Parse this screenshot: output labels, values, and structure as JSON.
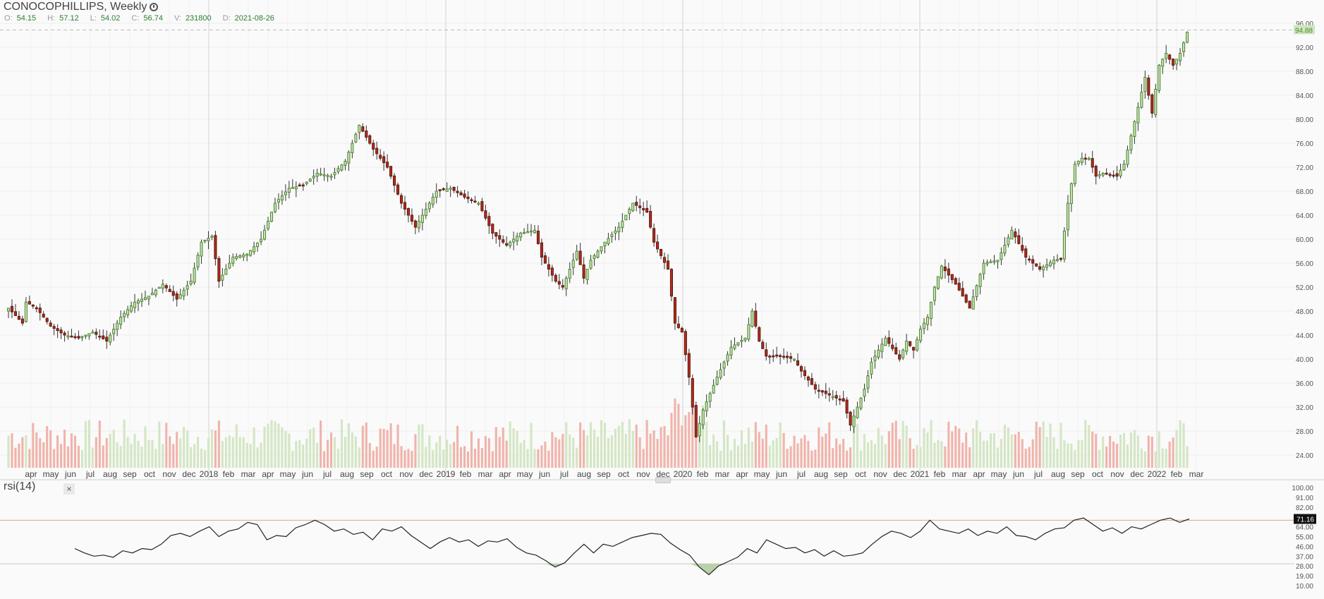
{
  "header": {
    "symbol": "CONOCOPHILLIPS",
    "interval": "Weekly",
    "symbol_line": "CONOCOPHILLIPS, Weekly"
  },
  "ohlc": {
    "o_key": "O:",
    "o": "54.15",
    "h_key": "H:",
    "h": "57.12",
    "l_key": "L:",
    "l": "54.02",
    "c_key": "C:",
    "c": "56.74",
    "v_key": "V:",
    "v": "231800",
    "d_key": "D:",
    "d": "2021-08-26"
  },
  "rsi_panel": {
    "title": "rsi(14)",
    "close_glyph": "×"
  },
  "colors": {
    "up": "#4d8a2e",
    "up_fill": "#c9dfb7",
    "down": "#b72a1a",
    "vol_up": "#d3e6c4",
    "vol_down": "#f0b3aa",
    "rsi_line": "#222222",
    "overbought": "#e8a080",
    "oversold_fill": "#b8d1a9",
    "last_price_bg": "#cfe6bf"
  },
  "chart_data": [
    {
      "type": "candlestick",
      "title": "CONOCOPHILLIPS, Weekly",
      "x_tick_labels": [
        "apr",
        "may",
        "jun",
        "jul",
        "aug",
        "sep",
        "oct",
        "nov",
        "dec",
        "2018",
        "feb",
        "mar",
        "apr",
        "may",
        "jun",
        "jul",
        "aug",
        "sep",
        "oct",
        "nov",
        "dec",
        "2019",
        "feb",
        "mar",
        "apr",
        "may",
        "jun",
        "jul",
        "aug",
        "sep",
        "oct",
        "nov",
        "dec",
        "2020",
        "feb",
        "mar",
        "apr",
        "may",
        "jun",
        "jul",
        "aug",
        "sep",
        "oct",
        "nov",
        "dec",
        "2021",
        "feb",
        "mar",
        "apr",
        "may",
        "jun",
        "jul",
        "aug",
        "sep",
        "oct",
        "nov",
        "dec",
        "2022",
        "feb",
        "mar"
      ],
      "y_tick_labels": [
        "96.00",
        "92.00",
        "88.00",
        "84.00",
        "80.00",
        "76.00",
        "72.00",
        "68.00",
        "64.00",
        "60.00",
        "56.00",
        "52.00",
        "48.00",
        "44.00",
        "40.00",
        "36.00",
        "32.00",
        "28.00",
        "24.00"
      ],
      "ylim": [
        21.5,
        97.5
      ],
      "last_price": "94.88",
      "close_path": [
        [
          0,
          48.5
        ],
        [
          4,
          46
        ],
        [
          5,
          49.5
        ],
        [
          8,
          48.5
        ],
        [
          12,
          45.5
        ],
        [
          16,
          44
        ],
        [
          20,
          43.5
        ],
        [
          24,
          44.5
        ],
        [
          28,
          43
        ],
        [
          32,
          47
        ],
        [
          36,
          49.5
        ],
        [
          40,
          50.5
        ],
        [
          44,
          52.5
        ],
        [
          48,
          50
        ],
        [
          52,
          53
        ],
        [
          55,
          59.5
        ],
        [
          58,
          60.5
        ],
        [
          60,
          53
        ],
        [
          64,
          57
        ],
        [
          68,
          57.5
        ],
        [
          72,
          60
        ],
        [
          76,
          66
        ],
        [
          80,
          68.5
        ],
        [
          84,
          69
        ],
        [
          88,
          71
        ],
        [
          92,
          70.5
        ],
        [
          96,
          73
        ],
        [
          100,
          79
        ],
        [
          104,
          75
        ],
        [
          108,
          72
        ],
        [
          112,
          66
        ],
        [
          116,
          62
        ],
        [
          118,
          64
        ],
        [
          122,
          68
        ],
        [
          126,
          68.5
        ],
        [
          130,
          67
        ],
        [
          134,
          66
        ],
        [
          138,
          61
        ],
        [
          142,
          59
        ],
        [
          146,
          61
        ],
        [
          150,
          61.5
        ],
        [
          152,
          57
        ],
        [
          156,
          53
        ],
        [
          158,
          52
        ],
        [
          160,
          55
        ],
        [
          162,
          58
        ],
        [
          164,
          53.5
        ],
        [
          166,
          56.5
        ],
        [
          170,
          59.5
        ],
        [
          174,
          62
        ],
        [
          178,
          66
        ],
        [
          182,
          64.5
        ],
        [
          184,
          59.5
        ],
        [
          188,
          55
        ],
        [
          190,
          46
        ],
        [
          192,
          44.5
        ],
        [
          194,
          37
        ],
        [
          196,
          27
        ],
        [
          198,
          31.5
        ],
        [
          202,
          37
        ],
        [
          206,
          42
        ],
        [
          210,
          43.5
        ],
        [
          212,
          48
        ],
        [
          214,
          43
        ],
        [
          216,
          40.5
        ],
        [
          220,
          40.5
        ],
        [
          224,
          40
        ],
        [
          226,
          38
        ],
        [
          230,
          35
        ],
        [
          234,
          34
        ],
        [
          238,
          33
        ],
        [
          240,
          29
        ],
        [
          242,
          32
        ],
        [
          244,
          35
        ],
        [
          246,
          39.5
        ],
        [
          250,
          43.5
        ],
        [
          254,
          40
        ],
        [
          256,
          43
        ],
        [
          258,
          41.5
        ],
        [
          260,
          45
        ],
        [
          262,
          47
        ],
        [
          264,
          52
        ],
        [
          266,
          55.5
        ],
        [
          270,
          52.5
        ],
        [
          274,
          48.5
        ],
        [
          278,
          56
        ],
        [
          282,
          56.5
        ],
        [
          286,
          61.5
        ],
        [
          290,
          57
        ],
        [
          294,
          55
        ],
        [
          298,
          56.5
        ],
        [
          300,
          56.74
        ],
        [
          302,
          66
        ],
        [
          304,
          72.5
        ],
        [
          306,
          73.5
        ],
        [
          308,
          73.5
        ],
        [
          310,
          70.5
        ],
        [
          312,
          71
        ],
        [
          316,
          70.5
        ],
        [
          318,
          72.5
        ],
        [
          322,
          82
        ],
        [
          324,
          87
        ],
        [
          326,
          81
        ],
        [
          328,
          89
        ],
        [
          330,
          91
        ],
        [
          332,
          89
        ],
        [
          334,
          91
        ],
        [
          336,
          94.5
        ]
      ],
      "volume_range": [
        0,
        8
      ],
      "volume_proxy": "height proportional to weekly volume",
      "xlabel": "",
      "ylabel": ""
    },
    {
      "type": "line",
      "title": "rsi(14)",
      "y_tick_labels": [
        "100.00",
        "91.00",
        "82.00",
        "73.00",
        "64.00",
        "55.00",
        "46.00",
        "37.00",
        "28.00",
        "19.00",
        "10.00"
      ],
      "ylim": [
        10,
        100
      ],
      "bands": [
        70,
        30
      ],
      "last_value": "71.16",
      "series": [
        {
          "name": "rsi(14)",
          "points": [
            [
              0,
              44
            ],
            [
              2,
              40
            ],
            [
              4,
              37
            ],
            [
              6,
              38
            ],
            [
              8,
              36
            ],
            [
              10,
              42
            ],
            [
              12,
              40
            ],
            [
              14,
              44
            ],
            [
              16,
              43
            ],
            [
              18,
              48
            ],
            [
              20,
              56
            ],
            [
              22,
              58
            ],
            [
              24,
              55
            ],
            [
              26,
              60
            ],
            [
              28,
              64
            ],
            [
              30,
              55
            ],
            [
              32,
              60
            ],
            [
              34,
              62
            ],
            [
              36,
              68
            ],
            [
              38,
              66
            ],
            [
              40,
              52
            ],
            [
              42,
              56
            ],
            [
              44,
              55
            ],
            [
              46,
              63
            ],
            [
              48,
              66
            ],
            [
              50,
              70
            ],
            [
              52,
              66
            ],
            [
              54,
              60
            ],
            [
              56,
              62
            ],
            [
              58,
              57
            ],
            [
              60,
              59
            ],
            [
              62,
              52
            ],
            [
              64,
              62
            ],
            [
              66,
              60
            ],
            [
              68,
              64
            ],
            [
              70,
              56
            ],
            [
              72,
              50
            ],
            [
              74,
              44
            ],
            [
              76,
              50
            ],
            [
              78,
              54
            ],
            [
              80,
              50
            ],
            [
              82,
              52
            ],
            [
              84,
              46
            ],
            [
              86,
              51
            ],
            [
              88,
              50
            ],
            [
              90,
              53
            ],
            [
              92,
              45
            ],
            [
              94,
              40
            ],
            [
              96,
              38
            ],
            [
              98,
              33
            ],
            [
              100,
              27
            ],
            [
              102,
              31
            ],
            [
              104,
              40
            ],
            [
              106,
              48
            ],
            [
              108,
              40
            ],
            [
              110,
              48
            ],
            [
              112,
              46
            ],
            [
              114,
              50
            ],
            [
              116,
              54
            ],
            [
              118,
              56
            ],
            [
              120,
              58
            ],
            [
              122,
              57
            ],
            [
              124,
              49
            ],
            [
              126,
              43
            ],
            [
              128,
              38
            ],
            [
              130,
              27
            ],
            [
              132,
              20
            ],
            [
              134,
              28
            ],
            [
              136,
              32
            ],
            [
              138,
              36
            ],
            [
              140,
              44
            ],
            [
              142,
              40
            ],
            [
              144,
              52
            ],
            [
              146,
              48
            ],
            [
              148,
              44
            ],
            [
              150,
              45
            ],
            [
              152,
              40
            ],
            [
              154,
              43
            ],
            [
              156,
              37
            ],
            [
              158,
              42
            ],
            [
              160,
              37
            ],
            [
              162,
              38
            ],
            [
              164,
              40
            ],
            [
              166,
              48
            ],
            [
              168,
              55
            ],
            [
              170,
              60
            ],
            [
              172,
              58
            ],
            [
              174,
              54
            ],
            [
              176,
              60
            ],
            [
              178,
              70
            ],
            [
              180,
              62
            ],
            [
              182,
              60
            ],
            [
              184,
              58
            ],
            [
              186,
              62
            ],
            [
              188,
              56
            ],
            [
              190,
              60
            ],
            [
              192,
              58
            ],
            [
              194,
              64
            ],
            [
              196,
              56
            ],
            [
              198,
              55
            ],
            [
              200,
              52
            ],
            [
              202,
              58
            ],
            [
              204,
              62
            ],
            [
              206,
              63
            ],
            [
              208,
              70
            ],
            [
              210,
              72
            ],
            [
              212,
              66
            ],
            [
              214,
              60
            ],
            [
              216,
              63
            ],
            [
              218,
              58
            ],
            [
              220,
              64
            ],
            [
              222,
              62
            ],
            [
              224,
              66
            ],
            [
              226,
              70
            ],
            [
              228,
              72
            ],
            [
              230,
              68
            ],
            [
              232,
              71.16
            ]
          ]
        }
      ],
      "xlabel": "",
      "ylabel": ""
    }
  ]
}
